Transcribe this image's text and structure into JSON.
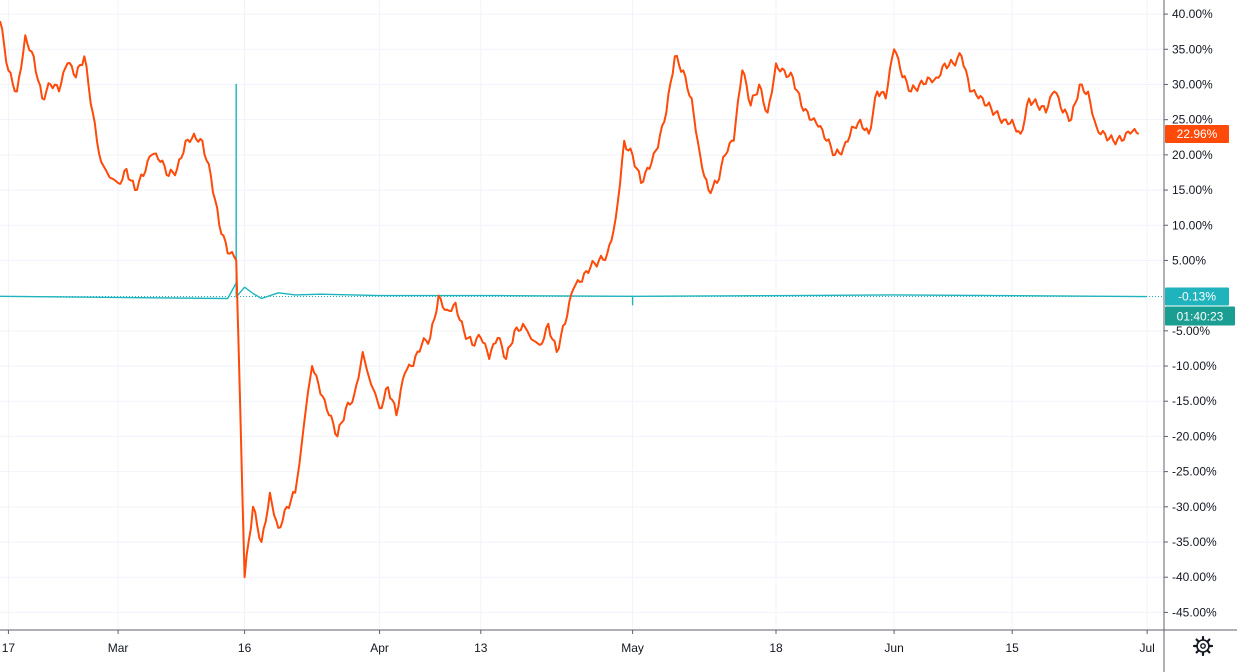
{
  "chart_data": {
    "type": "line",
    "y_unit": "%",
    "ylim": [
      -47.5,
      42
    ],
    "y_ticks": [
      "40.00%",
      "35.00%",
      "30.00%",
      "25.00%",
      "20.00%",
      "15.00%",
      "10.00%",
      "5.00%",
      "-5.00%",
      "-10.00%",
      "-15.00%",
      "-20.00%",
      "-25.00%",
      "-30.00%",
      "-35.00%",
      "-40.00%",
      "-45.00%"
    ],
    "y_tick_values": [
      40,
      35,
      30,
      25,
      20,
      15,
      10,
      5,
      -5,
      -10,
      -15,
      -20,
      -25,
      -30,
      -35,
      -40,
      -45
    ],
    "xlim": [
      "2020-02-16",
      "2020-07-03"
    ],
    "x_ticks": [
      {
        "date": "2020-02-17",
        "label": "17"
      },
      {
        "date": "2020-03-01",
        "label": "Mar"
      },
      {
        "date": "2020-03-16",
        "label": "16"
      },
      {
        "date": "2020-04-01",
        "label": "Apr"
      },
      {
        "date": "2020-04-13",
        "label": "13"
      },
      {
        "date": "2020-05-01",
        "label": "May"
      },
      {
        "date": "2020-05-18",
        "label": "18"
      },
      {
        "date": "2020-06-01",
        "label": "Jun"
      },
      {
        "date": "2020-06-15",
        "label": "15"
      },
      {
        "date": "2020-07-01",
        "label": "Jul"
      }
    ],
    "grid": true,
    "series": [
      {
        "color": "#ff4a0a",
        "last_label": "22.96%",
        "last_value": 22.96,
        "x": [
          "2020-02-16",
          "2020-02-17",
          "2020-02-18",
          "2020-02-19",
          "2020-02-20",
          "2020-02-21",
          "2020-02-22",
          "2020-02-23",
          "2020-02-24",
          "2020-02-25",
          "2020-02-26",
          "2020-02-27",
          "2020-02-28",
          "2020-03-01",
          "2020-03-02",
          "2020-03-03",
          "2020-03-04",
          "2020-03-05",
          "2020-03-06",
          "2020-03-07",
          "2020-03-08",
          "2020-03-09",
          "2020-03-10",
          "2020-03-11",
          "2020-03-12",
          "2020-03-13",
          "2020-03-14",
          "2020-03-15",
          "2020-03-16",
          "2020-03-17",
          "2020-03-18",
          "2020-03-19",
          "2020-03-20",
          "2020-03-21",
          "2020-03-22",
          "2020-03-24",
          "2020-03-25",
          "2020-03-26",
          "2020-03-27",
          "2020-03-28",
          "2020-03-29",
          "2020-03-30",
          "2020-04-01",
          "2020-04-02",
          "2020-04-03",
          "2020-04-04",
          "2020-04-05",
          "2020-04-06",
          "2020-04-07",
          "2020-04-08",
          "2020-04-09",
          "2020-04-10",
          "2020-04-11",
          "2020-04-12",
          "2020-04-13",
          "2020-04-14",
          "2020-04-15",
          "2020-04-16",
          "2020-04-17",
          "2020-04-18",
          "2020-04-20",
          "2020-04-21",
          "2020-04-22",
          "2020-04-23",
          "2020-04-24",
          "2020-04-25",
          "2020-04-26",
          "2020-04-27",
          "2020-04-28",
          "2020-04-29",
          "2020-04-30",
          "2020-05-01",
          "2020-05-02",
          "2020-05-03",
          "2020-05-04",
          "2020-05-05",
          "2020-05-06",
          "2020-05-07",
          "2020-05-08",
          "2020-05-09",
          "2020-05-10",
          "2020-05-11",
          "2020-05-12",
          "2020-05-13",
          "2020-05-14",
          "2020-05-15",
          "2020-05-16",
          "2020-05-17",
          "2020-05-18",
          "2020-05-19",
          "2020-05-20",
          "2020-05-21",
          "2020-05-22",
          "2020-05-23",
          "2020-05-24",
          "2020-05-25",
          "2020-05-26",
          "2020-05-27",
          "2020-05-28",
          "2020-05-29",
          "2020-05-30",
          "2020-05-31",
          "2020-06-01",
          "2020-06-02",
          "2020-06-03",
          "2020-06-04",
          "2020-06-05",
          "2020-06-06",
          "2020-06-07",
          "2020-06-08",
          "2020-06-09",
          "2020-06-10",
          "2020-06-11",
          "2020-06-12",
          "2020-06-13",
          "2020-06-14",
          "2020-06-15",
          "2020-06-16",
          "2020-06-17",
          "2020-06-18",
          "2020-06-19",
          "2020-06-20",
          "2020-06-21",
          "2020-06-22",
          "2020-06-23",
          "2020-06-24",
          "2020-06-25",
          "2020-06-26",
          "2020-06-27",
          "2020-06-28",
          "2020-06-29",
          "2020-06-30"
        ],
        "values": [
          39,
          32,
          29,
          37,
          34,
          28,
          30,
          29,
          33,
          31,
          34,
          26,
          19,
          16,
          18,
          15,
          17,
          20,
          19,
          17,
          18,
          22,
          23,
          22,
          17,
          10,
          6,
          5,
          -40,
          -30,
          -35,
          -28,
          -33,
          -30,
          -28,
          -10,
          -14,
          -17,
          -20,
          -16,
          -14,
          -8,
          -16,
          -13,
          -17,
          -11,
          -10,
          -7,
          -6,
          0,
          -2,
          -1,
          -5,
          -7,
          -6,
          -9,
          -6,
          -9,
          -5,
          -4,
          -7,
          -4,
          -8,
          -4,
          1,
          2,
          4,
          5,
          6,
          11,
          22,
          20,
          16,
          18,
          21,
          26,
          34,
          32,
          28,
          20,
          15,
          16,
          20,
          22,
          32,
          27,
          30,
          26,
          33,
          32,
          31,
          27,
          25,
          24,
          22,
          20,
          21,
          24,
          25,
          23,
          29,
          28,
          35,
          31,
          29,
          30,
          31,
          31,
          33,
          33,
          34,
          29,
          28,
          27,
          26,
          25,
          25,
          23,
          28,
          27,
          26,
          29,
          26,
          25,
          30,
          29,
          24,
          23,
          22,
          22,
          23,
          22.96
        ]
      },
      {
        "color": "#1fb3bd",
        "last_label": "-0.13%",
        "last_value": -0.13,
        "x": [
          "2020-02-16",
          "2020-03-14",
          "2020-03-15",
          "2020-03-15",
          "2020-03-15",
          "2020-03-16",
          "2020-03-17",
          "2020-03-18",
          "2020-03-20",
          "2020-03-22",
          "2020-03-25",
          "2020-04-01",
          "2020-04-15",
          "2020-05-01",
          "2020-05-01",
          "2020-05-01",
          "2020-05-20",
          "2020-06-01",
          "2020-07-01"
        ],
        "values": [
          -0.1,
          -0.4,
          1.8,
          30,
          -0.2,
          1.2,
          0.3,
          -0.4,
          0.4,
          0.1,
          0.2,
          0,
          0,
          -0.1,
          -1.3,
          -0.1,
          0,
          0.1,
          -0.13
        ]
      }
    ],
    "annotations": [
      {
        "label": "01:40:23",
        "color": "#1a9e91"
      }
    ]
  },
  "settings_icon": "gear-icon"
}
